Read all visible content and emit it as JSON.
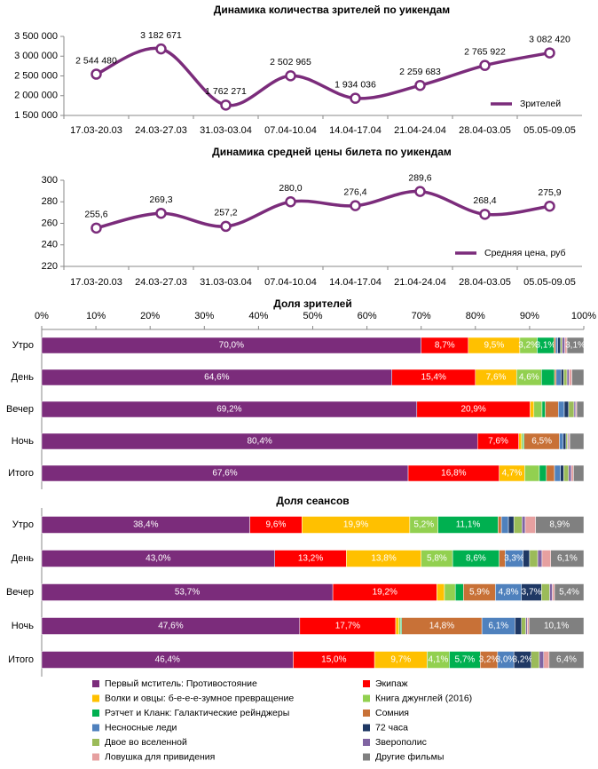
{
  "chart_data": [
    {
      "type": "line",
      "title": "Динамика количества зрителей по уикендам",
      "categories": [
        "17.03-20.03",
        "24.03-27.03",
        "31.03-03.04",
        "07.04-10.04",
        "14.04-17.04",
        "21.04-24.04",
        "28.04-03.05",
        "05.05-09.05"
      ],
      "series": [
        {
          "name": "Зрителей",
          "color": "#7b2c7b",
          "values": [
            2544480,
            3182671,
            1762271,
            2502965,
            1934036,
            2259683,
            2765922,
            3082420
          ],
          "value_labels": [
            "2 544 480",
            "3 182 671",
            "1 762 271",
            "2 502 965",
            "1 934 036",
            "2 259 683",
            "2 765 922",
            "3 082 420"
          ]
        }
      ],
      "ylim": [
        1500000,
        3500000
      ],
      "yticks": [
        {
          "value": 1500000,
          "label": "1 500 000"
        },
        {
          "value": 2000000,
          "label": "2 000 000"
        },
        {
          "value": 2500000,
          "label": "2 500 000"
        },
        {
          "value": 3000000,
          "label": "3 000 000"
        },
        {
          "value": 3500000,
          "label": "3 500 000"
        }
      ],
      "legend": "lower right"
    },
    {
      "type": "line",
      "title": "Динамика средней цены билета по уикендам",
      "categories": [
        "17.03-20.03",
        "24.03-27.03",
        "31.03-03.04",
        "07.04-10.04",
        "14.04-17.04",
        "21.04-24.04",
        "28.04-03.05",
        "05.05-09.05"
      ],
      "series": [
        {
          "name": "Средняя цена, руб",
          "color": "#7b2c7b",
          "values": [
            255.6,
            269.3,
            257.2,
            280.0,
            276.4,
            289.6,
            268.4,
            275.9
          ],
          "value_labels": [
            "255,6",
            "269,3",
            "257,2",
            "280,0",
            "276,4",
            "289,6",
            "268,4",
            "275,9"
          ]
        }
      ],
      "ylim": [
        220,
        300
      ],
      "yticks": [
        220,
        240,
        260,
        280,
        300
      ],
      "legend": "lower right"
    },
    {
      "type": "stacked_barh",
      "title": "Доля зрителей",
      "categories": [
        "Утро",
        "День",
        "Вечер",
        "Ночь",
        "Итого"
      ],
      "xlim": [
        0,
        100
      ],
      "xticks": [
        {
          "value": 0,
          "label": "0%"
        },
        {
          "value": 10,
          "label": "10%"
        },
        {
          "value": 20,
          "label": "20%"
        },
        {
          "value": 30,
          "label": "30%"
        },
        {
          "value": 40,
          "label": "40%"
        },
        {
          "value": 50,
          "label": "50%"
        },
        {
          "value": 60,
          "label": "60%"
        },
        {
          "value": 70,
          "label": "70%"
        },
        {
          "value": 80,
          "label": "80%"
        },
        {
          "value": 90,
          "label": "90%"
        },
        {
          "value": 100,
          "label": "100%"
        }
      ],
      "series": [
        {
          "color": "#7b2c7b",
          "values": [
            70.0,
            64.6,
            69.2,
            80.4,
            67.6
          ],
          "value_labels": [
            "70,0%",
            "64,6%",
            "69,2%",
            "80,4%",
            "67,6%"
          ]
        },
        {
          "color": "#ff0000",
          "values": [
            8.7,
            15.4,
            20.9,
            7.6,
            16.8
          ],
          "value_labels": [
            "8,7%",
            "15,4%",
            "20,9%",
            "7,6%",
            "16,8%"
          ]
        },
        {
          "color": "#ffc000",
          "values": [
            9.5,
            7.6,
            0.7,
            0.5,
            4.7
          ],
          "value_labels": [
            "9,5%",
            "7,6%",
            null,
            null,
            "4,7%"
          ]
        },
        {
          "color": "#92d050",
          "values": [
            3.2,
            4.6,
            1.5,
            0.3,
            2.7
          ],
          "value_labels": [
            "3,2%",
            "4,6%",
            null,
            null,
            null
          ]
        },
        {
          "color": "#00b050",
          "values": [
            3.1,
            2.4,
            0.6,
            0.2,
            1.3
          ],
          "value_labels": [
            "3,1%",
            null,
            null,
            null,
            null
          ]
        },
        {
          "color": "#c87137",
          "values": [
            0.3,
            0.3,
            2.4,
            6.5,
            1.5
          ],
          "value_labels": [
            null,
            null,
            null,
            "6,5%",
            null
          ]
        },
        {
          "color": "#4f81bd",
          "values": [
            0.4,
            0.9,
            1.1,
            0.7,
            1.1
          ],
          "value_labels": [
            null,
            null,
            null,
            null,
            null
          ]
        },
        {
          "color": "#1f3864",
          "values": [
            0.5,
            0.5,
            0.8,
            0.5,
            0.6
          ],
          "value_labels": [
            null,
            null,
            null,
            null,
            null
          ]
        },
        {
          "color": "#9bbb59",
          "values": [
            0.3,
            0.6,
            1.0,
            0.3,
            0.9
          ],
          "value_labels": [
            null,
            null,
            null,
            null,
            null
          ]
        },
        {
          "color": "#8064a2",
          "values": [
            0.5,
            0.4,
            0.3,
            0.2,
            0.5
          ],
          "value_labels": [
            null,
            null,
            null,
            null,
            null
          ]
        },
        {
          "color": "#e6a0a0",
          "values": [
            0.4,
            0.5,
            0.2,
            0.2,
            0.4
          ],
          "value_labels": [
            null,
            null,
            null,
            null,
            null
          ]
        },
        {
          "color": "#808080",
          "values": [
            3.1,
            2.2,
            1.3,
            2.6,
            1.9
          ],
          "value_labels": [
            "3,1%",
            null,
            null,
            null,
            null
          ]
        }
      ]
    },
    {
      "type": "stacked_barh",
      "title": "Доля сеансов",
      "categories": [
        "Утро",
        "День",
        "Вечер",
        "Ночь",
        "Итого"
      ],
      "xlim": [
        0,
        100
      ],
      "series": [
        {
          "name": "Первый мститель: Противостояние",
          "color": "#7b2c7b",
          "values": [
            38.4,
            43.0,
            53.7,
            47.6,
            46.4
          ],
          "value_labels": [
            "38,4%",
            "43,0%",
            "53,7%",
            "47,6%",
            "46,4%"
          ]
        },
        {
          "name": "Экипаж",
          "color": "#ff0000",
          "values": [
            9.6,
            13.2,
            19.2,
            17.7,
            15.0
          ],
          "value_labels": [
            "9,6%",
            "13,2%",
            "19,2%",
            "17,7%",
            "15,0%"
          ]
        },
        {
          "name": "Волки и овцы: б-е-е-е-зумное превращение",
          "color": "#ffc000",
          "values": [
            19.9,
            13.8,
            1.4,
            0.6,
            9.7
          ],
          "value_labels": [
            "19,9%",
            "13,8%",
            null,
            null,
            "9,7%"
          ]
        },
        {
          "name": "Книга джунглей (2016)",
          "color": "#92d050",
          "values": [
            5.2,
            5.8,
            2.0,
            0.3,
            4.1
          ],
          "value_labels": [
            "5,2%",
            "5,8%",
            null,
            null,
            "4,1%"
          ]
        },
        {
          "name": "Рэтчет и Кланк: Галактические рейнджеры",
          "color": "#00b050",
          "values": [
            11.1,
            8.6,
            1.5,
            0.2,
            5.7
          ],
          "value_labels": [
            "11,1%",
            "8,6%",
            null,
            null,
            "5,7%"
          ]
        },
        {
          "name": "Сомния",
          "color": "#c87137",
          "values": [
            0.6,
            1.1,
            5.9,
            14.8,
            3.2
          ],
          "value_labels": [
            null,
            null,
            "5,9%",
            "14,8%",
            "3,2%"
          ]
        },
        {
          "name": "Несносные леди",
          "color": "#4f81bd",
          "values": [
            1.3,
            3.3,
            4.8,
            6.1,
            3.0
          ],
          "value_labels": [
            null,
            "3,3%",
            "4,8%",
            "6,1%",
            "3,0%"
          ]
        },
        {
          "name": "72 часа",
          "color": "#1f3864",
          "values": [
            1.0,
            1.2,
            3.7,
            1.2,
            3.2
          ],
          "value_labels": [
            null,
            null,
            "3,7%",
            null,
            "3,2%"
          ]
        },
        {
          "name": "Двое во вселенной",
          "color": "#9bbb59",
          "values": [
            1.5,
            1.5,
            1.5,
            0.8,
            1.5
          ],
          "value_labels": [
            null,
            null,
            null,
            null,
            null
          ]
        },
        {
          "name": "Зверополис",
          "color": "#8064a2",
          "values": [
            0.6,
            0.8,
            0.5,
            0.3,
            0.8
          ],
          "value_labels": [
            null,
            null,
            null,
            null,
            null
          ]
        },
        {
          "name": "Ловушка для привидения",
          "color": "#e6a0a0",
          "values": [
            1.9,
            1.6,
            0.4,
            0.3,
            1.0
          ],
          "value_labels": [
            null,
            null,
            null,
            null,
            null
          ]
        },
        {
          "name": "Другие фильмы",
          "color": "#808080",
          "values": [
            8.9,
            6.1,
            5.4,
            10.1,
            6.4
          ],
          "value_labels": [
            "8,9%",
            "6,1%",
            "5,4%",
            "10,1%",
            "6,4%"
          ]
        }
      ],
      "legend": "bottom"
    }
  ]
}
